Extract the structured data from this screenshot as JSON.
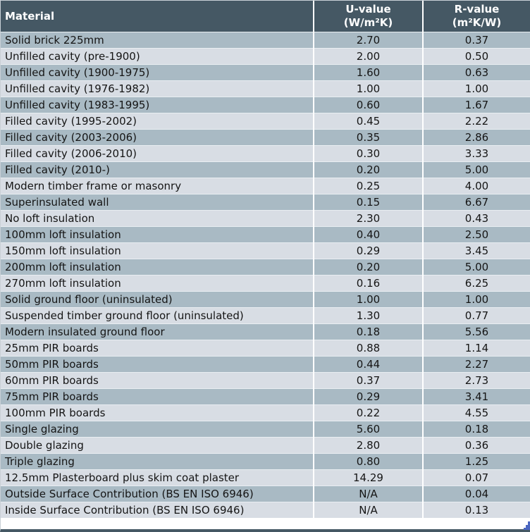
{
  "chart_data": {
    "type": "table",
    "columns": [
      {
        "label": "Material",
        "unit": ""
      },
      {
        "label": "U-value",
        "unit": "(W/m²K)"
      },
      {
        "label": "R-value",
        "unit": "(m²K/W)"
      }
    ],
    "rows": [
      [
        "Solid brick 225mm",
        "2.70",
        "0.37"
      ],
      [
        "Unfilled cavity (pre-1900)",
        "2.00",
        "0.50"
      ],
      [
        "Unfilled cavity (1900-1975)",
        "1.60",
        "0.63"
      ],
      [
        "Unfilled cavity (1976-1982)",
        "1.00",
        "1.00"
      ],
      [
        "Unfilled cavity (1983-1995)",
        "0.60",
        "1.67"
      ],
      [
        "Filled cavity (1995-2002)",
        "0.45",
        "2.22"
      ],
      [
        "Filled cavity (2003-2006)",
        "0.35",
        "2.86"
      ],
      [
        "Filled cavity (2006-2010)",
        "0.30",
        "3.33"
      ],
      [
        "Filled cavity (2010-)",
        "0.20",
        "5.00"
      ],
      [
        "Modern timber frame or masonry",
        "0.25",
        "4.00"
      ],
      [
        "Superinsulated wall",
        "0.15",
        "6.67"
      ],
      [
        "No loft insulation",
        "2.30",
        "0.43"
      ],
      [
        "100mm loft insulation",
        "0.40",
        "2.50"
      ],
      [
        "150mm loft insulation",
        "0.29",
        "3.45"
      ],
      [
        "200mm loft insulation",
        "0.20",
        "5.00"
      ],
      [
        "270mm loft insulation",
        "0.16",
        "6.25"
      ],
      [
        "Solid ground floor (uninsulated)",
        "1.00",
        "1.00"
      ],
      [
        "Suspended timber ground floor (uninsulated)",
        "1.30",
        "0.77"
      ],
      [
        "Modern insulated ground floor",
        "0.18",
        "5.56"
      ],
      [
        "25mm PIR boards",
        "0.88",
        "1.14"
      ],
      [
        "50mm PIR boards",
        "0.44",
        "2.27"
      ],
      [
        "60mm PIR boards",
        "0.37",
        "2.73"
      ],
      [
        "75mm PIR boards",
        "0.29",
        "3.41"
      ],
      [
        "100mm PIR boards",
        "0.22",
        "4.55"
      ],
      [
        "Single glazing",
        "5.60",
        "0.18"
      ],
      [
        "Double glazing",
        "2.80",
        "0.36"
      ],
      [
        "Triple glazing",
        "0.80",
        "1.25"
      ],
      [
        "12.5mm Plasterboard plus skim coat plaster",
        "14.29",
        "0.07"
      ],
      [
        "Outside Surface Contribution (BS EN ISO 6946)",
        "N/A",
        "0.04"
      ],
      [
        "Inside Surface Contribution (BS EN ISO 6946)",
        "N/A",
        "0.13"
      ]
    ]
  },
  "colors": {
    "header_bg": "#455864",
    "row_dark": "#a9bac4",
    "row_light": "#d8dde4",
    "header_text": "#ffffff",
    "body_text": "#151515",
    "row_separator": "#e9eef2",
    "outer_border": "#c9d0d6",
    "cursor_blue": "#4a66c0"
  }
}
